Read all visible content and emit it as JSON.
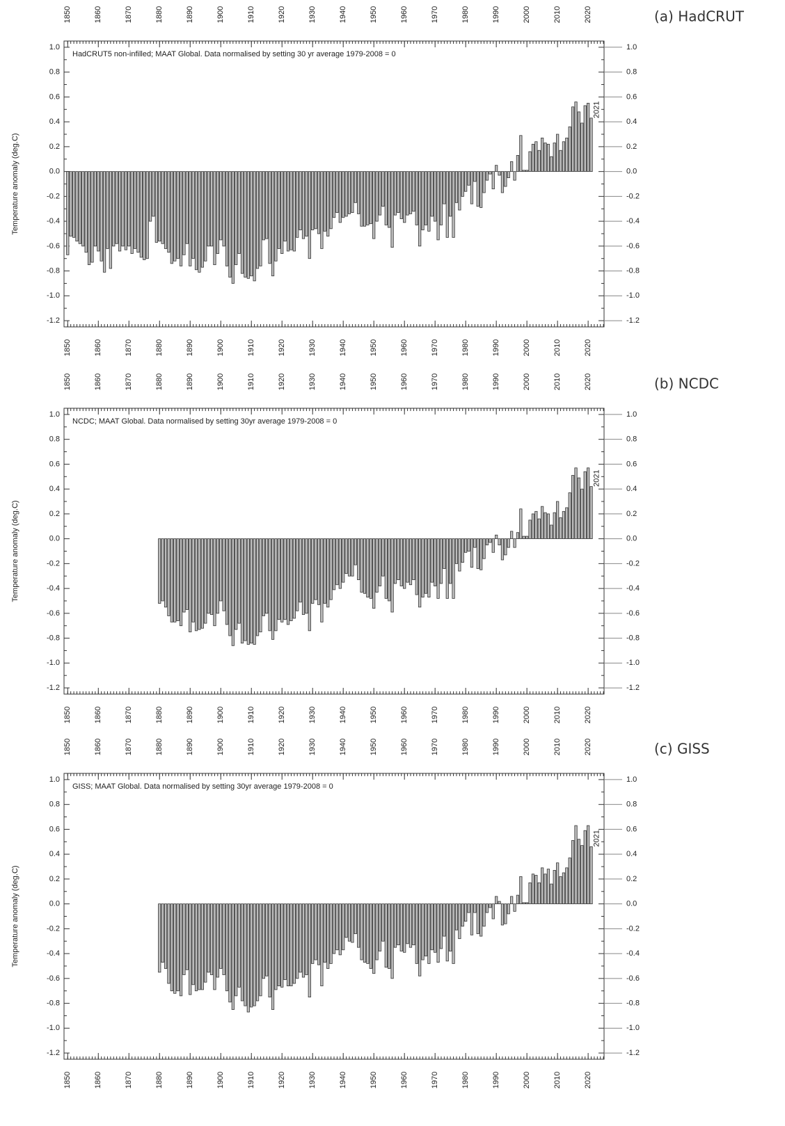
{
  "chart_data": [
    {
      "type": "bar",
      "panel_label": "(a) HadCRUT",
      "annotation": "HadCRUT5 non-infilled; MAAT Global. Data normalised by setting 30 yr average 1979-2008 = 0",
      "ylabel": "Temperature anomaly (deg.C)",
      "end_label": "2021",
      "end_label_color": "#3333ff",
      "color": "#bdbdbd",
      "edge_color": "#333333",
      "xlim": [
        1848.8,
        2025.2
      ],
      "ylim": [
        -1.25,
        1.05
      ],
      "xticks": [
        1850,
        1860,
        1870,
        1880,
        1890,
        1900,
        1910,
        1920,
        1930,
        1940,
        1950,
        1960,
        1970,
        1980,
        1990,
        2000,
        2010,
        2020
      ],
      "yticks": [
        {
          "value": 1,
          "label": "1.0"
        },
        0.8,
        0.6,
        0.4,
        0.2,
        {
          "value": 0,
          "label": "0.0"
        },
        -0.2,
        -0.4,
        -0.6,
        -0.8,
        {
          "value": -1,
          "label": "-1.0"
        },
        -1.2
      ],
      "x": [
        1850,
        1851,
        1852,
        1853,
        1854,
        1855,
        1856,
        1857,
        1858,
        1859,
        1860,
        1861,
        1862,
        1863,
        1864,
        1865,
        1866,
        1867,
        1868,
        1869,
        1870,
        1871,
        1872,
        1873,
        1874,
        1875,
        1876,
        1877,
        1878,
        1879,
        1880,
        1881,
        1882,
        1883,
        1884,
        1885,
        1886,
        1887,
        1888,
        1889,
        1890,
        1891,
        1892,
        1893,
        1894,
        1895,
        1896,
        1897,
        1898,
        1899,
        1900,
        1901,
        1902,
        1903,
        1904,
        1905,
        1906,
        1907,
        1908,
        1909,
        1910,
        1911,
        1912,
        1913,
        1914,
        1915,
        1916,
        1917,
        1918,
        1919,
        1920,
        1921,
        1922,
        1923,
        1924,
        1925,
        1926,
        1927,
        1928,
        1929,
        1930,
        1931,
        1932,
        1933,
        1934,
        1935,
        1936,
        1937,
        1938,
        1939,
        1940,
        1941,
        1942,
        1943,
        1944,
        1945,
        1946,
        1947,
        1948,
        1949,
        1950,
        1951,
        1952,
        1953,
        1954,
        1955,
        1956,
        1957,
        1958,
        1959,
        1960,
        1961,
        1962,
        1963,
        1964,
        1965,
        1966,
        1967,
        1968,
        1969,
        1970,
        1971,
        1972,
        1973,
        1974,
        1975,
        1976,
        1977,
        1978,
        1979,
        1980,
        1981,
        1982,
        1983,
        1984,
        1985,
        1986,
        1987,
        1988,
        1989,
        1990,
        1991,
        1992,
        1993,
        1994,
        1995,
        1996,
        1997,
        1998,
        1999,
        2000,
        2001,
        2002,
        2003,
        2004,
        2005,
        2006,
        2007,
        2008,
        2009,
        2010,
        2011,
        2012,
        2013,
        2014,
        2015,
        2016,
        2017,
        2018,
        2019,
        2020,
        2021
      ],
      "values": [
        -0.67,
        -0.52,
        -0.53,
        -0.56,
        -0.58,
        -0.6,
        -0.65,
        -0.75,
        -0.73,
        -0.6,
        -0.64,
        -0.72,
        -0.81,
        -0.62,
        -0.78,
        -0.6,
        -0.58,
        -0.64,
        -0.6,
        -0.63,
        -0.6,
        -0.66,
        -0.62,
        -0.65,
        -0.69,
        -0.71,
        -0.7,
        -0.4,
        -0.36,
        -0.57,
        -0.56,
        -0.58,
        -0.62,
        -0.65,
        -0.74,
        -0.72,
        -0.7,
        -0.76,
        -0.67,
        -0.58,
        -0.76,
        -0.7,
        -0.79,
        -0.81,
        -0.77,
        -0.72,
        -0.6,
        -0.6,
        -0.75,
        -0.66,
        -0.55,
        -0.6,
        -0.76,
        -0.85,
        -0.9,
        -0.75,
        -0.66,
        -0.82,
        -0.85,
        -0.86,
        -0.84,
        -0.88,
        -0.78,
        -0.76,
        -0.55,
        -0.54,
        -0.74,
        -0.84,
        -0.72,
        -0.62,
        -0.66,
        -0.56,
        -0.64,
        -0.63,
        -0.64,
        -0.53,
        -0.47,
        -0.54,
        -0.52,
        -0.7,
        -0.47,
        -0.46,
        -0.5,
        -0.62,
        -0.48,
        -0.52,
        -0.46,
        -0.37,
        -0.33,
        -0.41,
        -0.37,
        -0.36,
        -0.34,
        -0.33,
        -0.25,
        -0.34,
        -0.44,
        -0.44,
        -0.43,
        -0.42,
        -0.54,
        -0.4,
        -0.35,
        -0.28,
        -0.43,
        -0.45,
        -0.61,
        -0.35,
        -0.33,
        -0.38,
        -0.41,
        -0.35,
        -0.34,
        -0.32,
        -0.43,
        -0.6,
        -0.47,
        -0.43,
        -0.48,
        -0.36,
        -0.4,
        -0.55,
        -0.43,
        -0.26,
        -0.53,
        -0.36,
        -0.53,
        -0.25,
        -0.31,
        -0.2,
        -0.16,
        -0.11,
        -0.26,
        -0.08,
        -0.28,
        -0.29,
        -0.17,
        -0.07,
        -0.02,
        -0.14,
        0.05,
        -0.03,
        -0.17,
        -0.12,
        -0.05,
        0.08,
        -0.07,
        0.13,
        0.29,
        0.01,
        0.01,
        0.16,
        0.22,
        0.24,
        0.17,
        0.27,
        0.23,
        0.22,
        0.12,
        0.23,
        0.3,
        0.17,
        0.24,
        0.27,
        0.36,
        0.52,
        0.56,
        0.48,
        0.39,
        0.53,
        0.55,
        0.43
      ]
    },
    {
      "type": "bar",
      "panel_label": "(b) NCDC",
      "annotation": "NCDC; MAAT Global. Data normalised by setting 30yr average 1979-2008 = 0",
      "ylabel": "Temperature anomaly (deg.C)",
      "end_label": "2021",
      "end_label_color": "#3333ff",
      "color": "#bdbdbd",
      "edge_color": "#333333",
      "xlim": [
        1848.8,
        2025.2
      ],
      "ylim": [
        -1.25,
        1.05
      ],
      "xticks": [
        1850,
        1860,
        1870,
        1880,
        1890,
        1900,
        1910,
        1920,
        1930,
        1940,
        1950,
        1960,
        1970,
        1980,
        1990,
        2000,
        2010,
        2020
      ],
      "yticks": [
        {
          "value": 1,
          "label": "1.0"
        },
        0.8,
        0.6,
        0.4,
        0.2,
        {
          "value": 0,
          "label": "0.0"
        },
        -0.2,
        -0.4,
        -0.6,
        -0.8,
        {
          "value": -1,
          "label": "-1.0"
        },
        -1.2
      ],
      "x": [
        1880,
        1881,
        1882,
        1883,
        1884,
        1885,
        1886,
        1887,
        1888,
        1889,
        1890,
        1891,
        1892,
        1893,
        1894,
        1895,
        1896,
        1897,
        1898,
        1899,
        1900,
        1901,
        1902,
        1903,
        1904,
        1905,
        1906,
        1907,
        1908,
        1909,
        1910,
        1911,
        1912,
        1913,
        1914,
        1915,
        1916,
        1917,
        1918,
        1919,
        1920,
        1921,
        1922,
        1923,
        1924,
        1925,
        1926,
        1927,
        1928,
        1929,
        1930,
        1931,
        1932,
        1933,
        1934,
        1935,
        1936,
        1937,
        1938,
        1939,
        1940,
        1941,
        1942,
        1943,
        1944,
        1945,
        1946,
        1947,
        1948,
        1949,
        1950,
        1951,
        1952,
        1953,
        1954,
        1955,
        1956,
        1957,
        1958,
        1959,
        1960,
        1961,
        1962,
        1963,
        1964,
        1965,
        1966,
        1967,
        1968,
        1969,
        1970,
        1971,
        1972,
        1973,
        1974,
        1975,
        1976,
        1977,
        1978,
        1979,
        1980,
        1981,
        1982,
        1983,
        1984,
        1985,
        1986,
        1987,
        1988,
        1989,
        1990,
        1991,
        1992,
        1993,
        1994,
        1995,
        1996,
        1997,
        1998,
        1999,
        2000,
        2001,
        2002,
        2003,
        2004,
        2005,
        2006,
        2007,
        2008,
        2009,
        2010,
        2011,
        2012,
        2013,
        2014,
        2015,
        2016,
        2017,
        2018,
        2019,
        2020,
        2021
      ],
      "values": [
        -0.52,
        -0.5,
        -0.55,
        -0.62,
        -0.67,
        -0.67,
        -0.66,
        -0.7,
        -0.59,
        -0.57,
        -0.75,
        -0.67,
        -0.74,
        -0.73,
        -0.72,
        -0.68,
        -0.6,
        -0.61,
        -0.7,
        -0.6,
        -0.5,
        -0.58,
        -0.69,
        -0.78,
        -0.86,
        -0.73,
        -0.68,
        -0.84,
        -0.82,
        -0.85,
        -0.84,
        -0.85,
        -0.78,
        -0.75,
        -0.62,
        -0.6,
        -0.74,
        -0.81,
        -0.74,
        -0.65,
        -0.67,
        -0.65,
        -0.69,
        -0.66,
        -0.64,
        -0.58,
        -0.51,
        -0.61,
        -0.6,
        -0.74,
        -0.52,
        -0.49,
        -0.53,
        -0.67,
        -0.52,
        -0.55,
        -0.49,
        -0.41,
        -0.37,
        -0.4,
        -0.35,
        -0.28,
        -0.3,
        -0.3,
        -0.21,
        -0.33,
        -0.43,
        -0.44,
        -0.47,
        -0.48,
        -0.56,
        -0.43,
        -0.38,
        -0.3,
        -0.48,
        -0.5,
        -0.59,
        -0.36,
        -0.33,
        -0.38,
        -0.4,
        -0.35,
        -0.37,
        -0.33,
        -0.45,
        -0.55,
        -0.47,
        -0.44,
        -0.47,
        -0.35,
        -0.38,
        -0.48,
        -0.36,
        -0.24,
        -0.48,
        -0.36,
        -0.48,
        -0.2,
        -0.26,
        -0.19,
        -0.11,
        -0.1,
        -0.23,
        -0.07,
        -0.24,
        -0.25,
        -0.16,
        -0.05,
        -0.03,
        -0.11,
        0.03,
        -0.05,
        -0.17,
        -0.13,
        -0.07,
        0.06,
        -0.07,
        0.05,
        0.24,
        0.02,
        0.02,
        0.15,
        0.2,
        0.22,
        0.16,
        0.26,
        0.21,
        0.2,
        0.11,
        0.21,
        0.3,
        0.17,
        0.22,
        0.25,
        0.37,
        0.51,
        0.57,
        0.49,
        0.4,
        0.54,
        0.57,
        0.42
      ]
    },
    {
      "type": "bar",
      "panel_label": "(c) GISS",
      "annotation": "GISS; MAAT Global. Data normalised by setting 30yr average 1979-2008 = 0",
      "ylabel": "Temperature anomaly (deg.C)",
      "end_label": "2021",
      "end_label_color": "#3333ff",
      "color": "#bdbdbd",
      "edge_color": "#333333",
      "xlim": [
        1848.8,
        2025.2
      ],
      "ylim": [
        -1.25,
        1.05
      ],
      "xticks": [
        1850,
        1860,
        1870,
        1880,
        1890,
        1900,
        1910,
        1920,
        1930,
        1940,
        1950,
        1960,
        1970,
        1980,
        1990,
        2000,
        2010,
        2020
      ],
      "yticks": [
        {
          "value": 1,
          "label": "1.0"
        },
        0.8,
        0.6,
        0.4,
        0.2,
        {
          "value": 0,
          "label": "0.0"
        },
        -0.2,
        -0.4,
        -0.6,
        -0.8,
        {
          "value": -1,
          "label": "-1.0"
        },
        -1.2
      ],
      "x": [
        1880,
        1881,
        1882,
        1883,
        1884,
        1885,
        1886,
        1887,
        1888,
        1889,
        1890,
        1891,
        1892,
        1893,
        1894,
        1895,
        1896,
        1897,
        1898,
        1899,
        1900,
        1901,
        1902,
        1903,
        1904,
        1905,
        1906,
        1907,
        1908,
        1909,
        1910,
        1911,
        1912,
        1913,
        1914,
        1915,
        1916,
        1917,
        1918,
        1919,
        1920,
        1921,
        1922,
        1923,
        1924,
        1925,
        1926,
        1927,
        1928,
        1929,
        1930,
        1931,
        1932,
        1933,
        1934,
        1935,
        1936,
        1937,
        1938,
        1939,
        1940,
        1941,
        1942,
        1943,
        1944,
        1945,
        1946,
        1947,
        1948,
        1949,
        1950,
        1951,
        1952,
        1953,
        1954,
        1955,
        1956,
        1957,
        1958,
        1959,
        1960,
        1961,
        1962,
        1963,
        1964,
        1965,
        1966,
        1967,
        1968,
        1969,
        1970,
        1971,
        1972,
        1973,
        1974,
        1975,
        1976,
        1977,
        1978,
        1979,
        1980,
        1981,
        1982,
        1983,
        1984,
        1985,
        1986,
        1987,
        1988,
        1989,
        1990,
        1991,
        1992,
        1993,
        1994,
        1995,
        1996,
        1997,
        1998,
        1999,
        2000,
        2001,
        2002,
        2003,
        2004,
        2005,
        2006,
        2007,
        2008,
        2009,
        2010,
        2011,
        2012,
        2013,
        2014,
        2015,
        2016,
        2017,
        2018,
        2019,
        2020,
        2021
      ],
      "values": [
        -0.55,
        -0.47,
        -0.52,
        -0.64,
        -0.7,
        -0.72,
        -0.7,
        -0.74,
        -0.57,
        -0.53,
        -0.73,
        -0.65,
        -0.7,
        -0.69,
        -0.69,
        -0.63,
        -0.55,
        -0.57,
        -0.69,
        -0.59,
        -0.52,
        -0.57,
        -0.7,
        -0.79,
        -0.85,
        -0.74,
        -0.67,
        -0.78,
        -0.82,
        -0.87,
        -0.83,
        -0.82,
        -0.78,
        -0.74,
        -0.6,
        -0.58,
        -0.75,
        -0.85,
        -0.69,
        -0.66,
        -0.67,
        -0.61,
        -0.66,
        -0.66,
        -0.64,
        -0.6,
        -0.55,
        -0.59,
        -0.57,
        -0.75,
        -0.48,
        -0.45,
        -0.49,
        -0.66,
        -0.47,
        -0.52,
        -0.48,
        -0.4,
        -0.37,
        -0.41,
        -0.37,
        -0.27,
        -0.3,
        -0.31,
        -0.24,
        -0.35,
        -0.45,
        -0.47,
        -0.48,
        -0.52,
        -0.56,
        -0.45,
        -0.38,
        -0.3,
        -0.51,
        -0.52,
        -0.6,
        -0.35,
        -0.33,
        -0.38,
        -0.39,
        -0.32,
        -0.35,
        -0.33,
        -0.48,
        -0.58,
        -0.45,
        -0.42,
        -0.48,
        -0.37,
        -0.39,
        -0.47,
        -0.36,
        -0.26,
        -0.46,
        -0.38,
        -0.48,
        -0.21,
        -0.28,
        -0.18,
        -0.14,
        -0.07,
        -0.25,
        -0.07,
        -0.24,
        -0.26,
        -0.18,
        -0.07,
        -0.03,
        -0.12,
        0.06,
        0.02,
        -0.17,
        -0.16,
        -0.08,
        0.06,
        -0.06,
        0.07,
        0.22,
        0.01,
        0.01,
        0.17,
        0.24,
        0.23,
        0.17,
        0.29,
        0.24,
        0.28,
        0.16,
        0.27,
        0.33,
        0.22,
        0.25,
        0.29,
        0.37,
        0.51,
        0.63,
        0.52,
        0.47,
        0.59,
        0.63,
        0.46
      ]
    }
  ]
}
